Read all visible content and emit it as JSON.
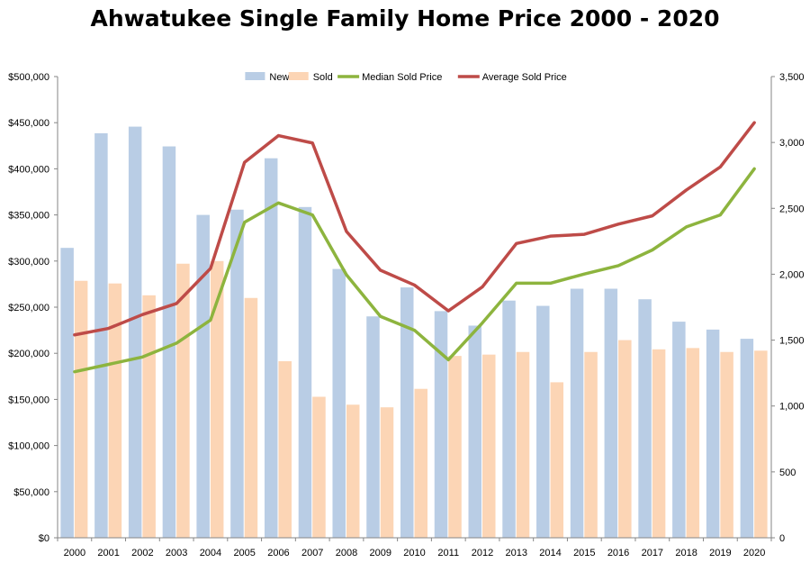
{
  "chart_data": {
    "type": "bar",
    "title": "Ahwatukee Single Family Home Price 2000 - 2020",
    "categories": [
      "2000",
      "2001",
      "2002",
      "2003",
      "2004",
      "2005",
      "2006",
      "2007",
      "2008",
      "2009",
      "2010",
      "2011",
      "2012",
      "2013",
      "2014",
      "2015",
      "2016",
      "2017",
      "2018",
      "2019",
      "2020"
    ],
    "left_axis": {
      "ylim": [
        0,
        500000
      ],
      "ticks": [
        {
          "value": 0,
          "label": "$0"
        },
        {
          "value": 50000,
          "label": "$50,000"
        },
        {
          "value": 100000,
          "label": "$100,000"
        },
        {
          "value": 150000,
          "label": "$150,000"
        },
        {
          "value": 200000,
          "label": "$200,000"
        },
        {
          "value": 250000,
          "label": "$250,000"
        },
        {
          "value": 300000,
          "label": "$300,000"
        },
        {
          "value": 350000,
          "label": "$350,000"
        },
        {
          "value": 400000,
          "label": "$400,000"
        },
        {
          "value": 450000,
          "label": "$450,000"
        },
        {
          "value": 500000,
          "label": "$500,000"
        }
      ]
    },
    "right_axis": {
      "ylim": [
        0,
        3500
      ],
      "ticks": [
        {
          "value": 0,
          "label": "0"
        },
        {
          "value": 500,
          "label": "500"
        },
        {
          "value": 1000,
          "label": "1,000"
        },
        {
          "value": 1500,
          "label": "1,500"
        },
        {
          "value": 2000,
          "label": "2,000"
        },
        {
          "value": 2500,
          "label": "2,500"
        },
        {
          "value": 3000,
          "label": "3,000"
        },
        {
          "value": 3500,
          "label": "3,500"
        }
      ]
    },
    "legend_position": "top",
    "grid": false,
    "series": [
      {
        "name": "New",
        "kind": "bar",
        "axis": "right",
        "color": "#B9CDE5",
        "values": [
          2200,
          3070,
          3120,
          2970,
          2450,
          2490,
          2880,
          2510,
          2040,
          1680,
          1900,
          1720,
          1610,
          1800,
          1760,
          1890,
          1890,
          1810,
          1640,
          1580,
          1510
        ]
      },
      {
        "name": "Sold",
        "kind": "bar",
        "axis": "right",
        "color": "#FCD5B5",
        "values": [
          1950,
          1930,
          1840,
          2080,
          2100,
          1820,
          1340,
          1070,
          1010,
          990,
          1130,
          1380,
          1390,
          1410,
          1180,
          1410,
          1500,
          1430,
          1440,
          1410,
          1420
        ]
      },
      {
        "name": "Median Sold Price",
        "kind": "line",
        "axis": "left",
        "color": "#8DB43E",
        "values": [
          180000,
          188000,
          196000,
          211000,
          236000,
          342000,
          363000,
          350000,
          285000,
          240000,
          225000,
          193000,
          233000,
          276000,
          276000,
          286000,
          295000,
          312000,
          337000,
          350000,
          400000
        ]
      },
      {
        "name": "Average Sold Price",
        "kind": "line",
        "axis": "left",
        "color": "#BE4B48",
        "values": [
          220000,
          227000,
          242000,
          254000,
          292000,
          407000,
          436000,
          428000,
          332000,
          290000,
          274000,
          246000,
          272000,
          319000,
          327000,
          329000,
          340000,
          349000,
          377000,
          402000,
          450000
        ]
      }
    ]
  }
}
